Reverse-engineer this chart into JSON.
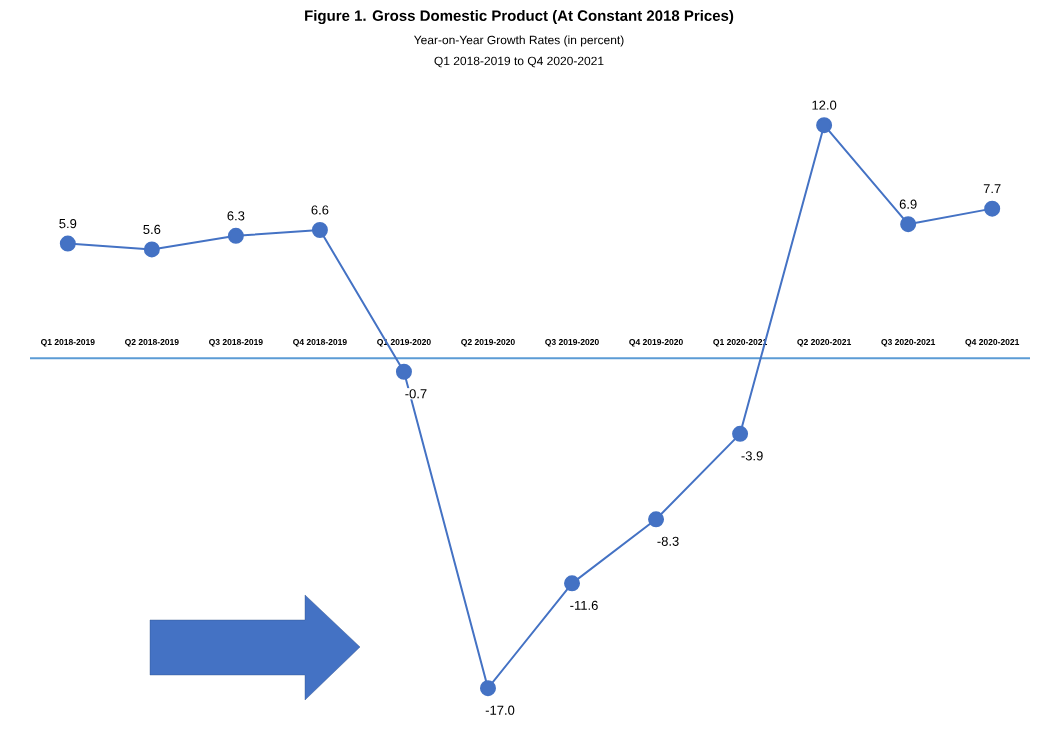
{
  "chart_data": {
    "type": "line",
    "title": "Figure 1. Gross Domestic Product (At Constant 2018 Prices)",
    "subtitle": "Year-on-Year Growth Rates (in percent)",
    "annotations": [
      "Q1 2018-2019 to Q4 2020-2021"
    ],
    "categories": [
      "Q1 2018-2019",
      "Q2 2018-2019",
      "Q3 2018-2019",
      "Q4 2018-2019",
      "Q1 2019-2020",
      "Q2 2019-2020",
      "Q3 2019-2020",
      "Q4 2019-2020",
      "Q1 2020-2021",
      "Q2 2020-2021",
      "Q3 2020-2021",
      "Q4 2020-2021"
    ],
    "values": [
      5.9,
      5.6,
      6.3,
      6.6,
      -0.7,
      -17.0,
      -11.6,
      -8.3,
      -3.9,
      12.0,
      6.9,
      7.7
    ],
    "value_labels": [
      "5.9",
      "5.6",
      "6.3",
      "6.6",
      "-0.7",
      "-17.0",
      "-11.6",
      "-8.3",
      "-3.9",
      "12.0",
      "6.9",
      "7.7"
    ],
    "color": "#4472c4",
    "marker": "circle",
    "line_style": "solid"
  }
}
